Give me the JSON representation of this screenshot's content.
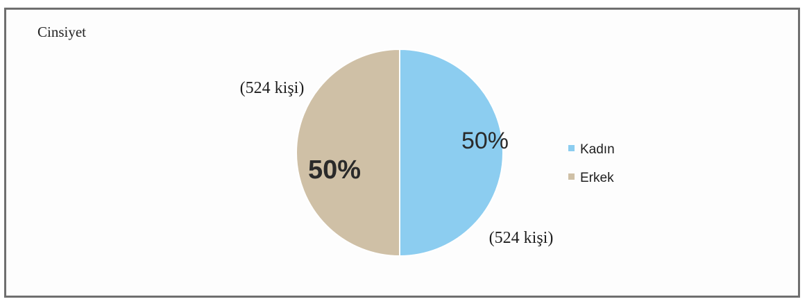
{
  "chart_data": {
    "type": "pie",
    "title": "Cinsiyet",
    "legend_position": "right",
    "slices": [
      {
        "label": "Kadın",
        "value": 524,
        "percent_label": "50%",
        "count_label": "(524 kişi)",
        "color": "#8ccdf0"
      },
      {
        "label": "Erkek",
        "value": 524,
        "percent_label": "50%",
        "count_label": "(524 kişi)",
        "color": "#cfc0a6"
      }
    ]
  }
}
